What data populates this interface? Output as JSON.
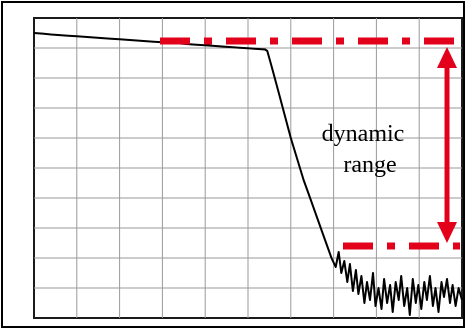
{
  "annotation": {
    "line1": "dynamic",
    "line2": "range"
  },
  "colors": {
    "frame": "#000000",
    "plot_border": "#1a1a1a",
    "grid": "#9a9a9a",
    "trace": "#000000",
    "marker": "#e3001b",
    "background": "#ffffff"
  },
  "chart_data": {
    "type": "line",
    "grid": true,
    "series": [
      {
        "points": [
          [
            0,
            0.95
          ],
          [
            2,
            0.948
          ],
          [
            4,
            0.945
          ],
          [
            6,
            0.943
          ],
          [
            8,
            0.941
          ],
          [
            10,
            0.939
          ],
          [
            12,
            0.937
          ],
          [
            14,
            0.935
          ],
          [
            16,
            0.933
          ],
          [
            18,
            0.931
          ],
          [
            20,
            0.929
          ],
          [
            22,
            0.927
          ],
          [
            24,
            0.925
          ],
          [
            26,
            0.923
          ],
          [
            28,
            0.921
          ],
          [
            30,
            0.919
          ],
          [
            32,
            0.917
          ],
          [
            34,
            0.915
          ],
          [
            36,
            0.913
          ],
          [
            38,
            0.911
          ],
          [
            40,
            0.909
          ],
          [
            42,
            0.907
          ],
          [
            44,
            0.905
          ],
          [
            46,
            0.903
          ],
          [
            48,
            0.901
          ],
          [
            50,
            0.899
          ],
          [
            52,
            0.897
          ],
          [
            54,
            0.895
          ],
          [
            54.5,
            0.89
          ],
          [
            55.5,
            0.84
          ],
          [
            57,
            0.76
          ],
          [
            58.5,
            0.68
          ],
          [
            60,
            0.6
          ],
          [
            61.5,
            0.53
          ],
          [
            63,
            0.46
          ],
          [
            64.5,
            0.4
          ],
          [
            66,
            0.34
          ],
          [
            67.5,
            0.28
          ],
          [
            68.5,
            0.24
          ],
          [
            69.5,
            0.2
          ],
          [
            70.5,
            0.17
          ],
          [
            71.2,
            0.22
          ],
          [
            71.8,
            0.15
          ],
          [
            72.5,
            0.19
          ],
          [
            73.2,
            0.12
          ],
          [
            73.8,
            0.18
          ],
          [
            74.5,
            0.09
          ],
          [
            75.2,
            0.16
          ],
          [
            75.8,
            0.08
          ],
          [
            76.5,
            0.14
          ],
          [
            77.2,
            0.05
          ],
          [
            77.8,
            0.12
          ],
          [
            78.5,
            0.06
          ],
          [
            79.2,
            0.15
          ],
          [
            79.8,
            0.04
          ],
          [
            80.5,
            0.1
          ],
          [
            81.2,
            0.03
          ],
          [
            81.8,
            0.13
          ],
          [
            82.5,
            0.05
          ],
          [
            83.2,
            0.11
          ],
          [
            83.8,
            0.02
          ],
          [
            84.5,
            0.12
          ],
          [
            85.2,
            0.06
          ],
          [
            85.8,
            0.14
          ],
          [
            86.5,
            0.04
          ],
          [
            87.2,
            0.1
          ],
          [
            87.8,
            0.01
          ],
          [
            88.5,
            0.13
          ],
          [
            89.2,
            0.05
          ],
          [
            89.8,
            0.11
          ],
          [
            90.5,
            0.03
          ],
          [
            91.2,
            0.12
          ],
          [
            91.8,
            0.06
          ],
          [
            92.5,
            0.14
          ],
          [
            93.2,
            0.04
          ],
          [
            93.8,
            0.1
          ],
          [
            94.5,
            0.02
          ],
          [
            95.2,
            0.12
          ],
          [
            95.8,
            0.07
          ],
          [
            96.5,
            0.13
          ],
          [
            97.2,
            0.05
          ],
          [
            97.8,
            0.11
          ],
          [
            98.5,
            0.04
          ],
          [
            99.2,
            0.1
          ],
          [
            100,
            0.06
          ]
        ]
      }
    ],
    "xlim": [
      0,
      100
    ],
    "ylim": [
      0,
      1
    ],
    "grid_lines": {
      "vertical": 10,
      "horizontal": 10
    },
    "reference_levels": {
      "upper": 0.95,
      "lower": 0.24
    }
  }
}
